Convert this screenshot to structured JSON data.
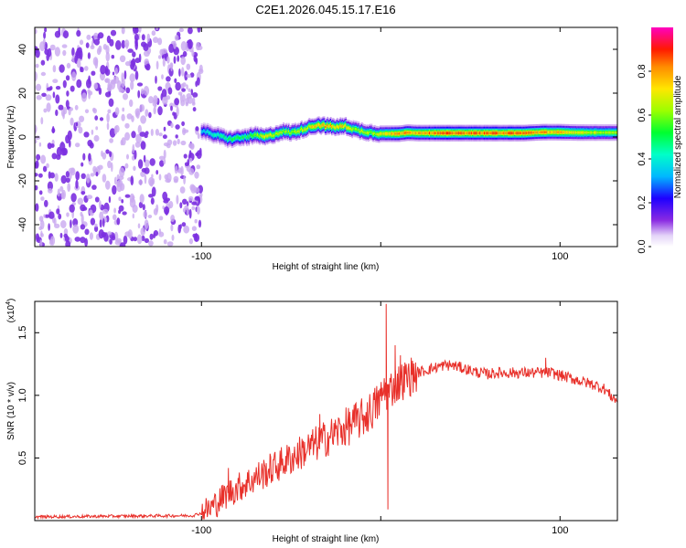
{
  "figure": {
    "title": "C2E1.2026.045.15.17.E16"
  },
  "colors": {
    "spectrogram_noise": "#7b2fe0",
    "spectrogram_noise_light": "#c9a9f0",
    "snr_line": "#e8302a"
  },
  "chart_data": [
    {
      "type": "heatmap",
      "name": "spectrogram",
      "xlabel": "Height of straight line (km)",
      "ylabel": "Frequency (Hz)",
      "xlim": [
        -193,
        132
      ],
      "ylim": [
        -50,
        50
      ],
      "xticks": [
        -100,
        0,
        100
      ],
      "xtick_labels": [
        "-100",
        "",
        "100"
      ],
      "yticks": [
        -40,
        -20,
        0,
        20,
        40
      ],
      "ytick_labels": [
        "-40",
        "-20",
        "0",
        "20",
        "40"
      ],
      "noise_region_x": [
        -193,
        -100
      ],
      "signal_track": {
        "x": [
          -100,
          -95,
          -90,
          -85,
          -80,
          -75,
          -70,
          -65,
          -60,
          -55,
          -50,
          -45,
          -40,
          -35,
          -30,
          -25,
          -20,
          -15,
          -10,
          -5,
          0,
          5,
          10,
          15,
          20,
          30,
          40,
          50,
          60,
          70,
          80,
          90,
          100,
          110,
          120,
          132
        ],
        "freq": [
          3,
          1.5,
          0.5,
          -1,
          -0.5,
          0,
          0.8,
          0,
          1,
          2.5,
          2,
          3,
          4.5,
          5.5,
          5,
          4.5,
          5,
          3.5,
          2.5,
          2,
          1.5,
          1.5,
          1.5,
          2,
          1.8,
          1.8,
          1.8,
          1.8,
          1.8,
          1.8,
          1.8,
          2.2,
          2.2,
          2.0,
          2.0,
          2.0
        ],
        "amplitude": [
          0.45,
          0.5,
          0.55,
          0.6,
          0.6,
          0.6,
          0.7,
          0.8,
          0.75,
          0.7,
          0.7,
          0.75,
          0.8,
          0.85,
          0.9,
          0.85,
          0.85,
          0.7,
          0.75,
          0.7,
          0.8,
          0.85,
          0.9,
          0.9,
          0.9,
          0.95,
          0.95,
          0.95,
          0.95,
          0.95,
          0.95,
          0.9,
          0.85,
          0.8,
          0.75,
          0.7
        ]
      },
      "colorbar": {
        "label": "Normalized spectral amplitude",
        "range": [
          0.0,
          1.0
        ],
        "ticks": [
          0.0,
          0.2,
          0.4,
          0.6,
          0.8
        ],
        "tick_labels": [
          "0.0",
          "0.2",
          "0.4",
          "0.6",
          "0.8"
        ]
      }
    },
    {
      "type": "line",
      "name": "snr",
      "xlabel": "Height of straight line (km)",
      "ylabel": "SNR (10 * v/v)",
      "multiplier_label": "(x10",
      "multiplier_exp": "4",
      "multiplier_close": ")",
      "xlim": [
        -193,
        132
      ],
      "ylim": [
        0,
        1.75
      ],
      "xticks": [
        -100,
        0,
        100
      ],
      "xtick_labels": [
        "-100",
        "",
        "100"
      ],
      "yticks": [
        0.5,
        1.0,
        1.5
      ],
      "ytick_labels": [
        "0.5",
        "1.0",
        "1.5"
      ],
      "series": [
        {
          "name": "SNR",
          "x": [
            -193,
            -150,
            -105,
            -100,
            -95,
            -90,
            -85,
            -80,
            -75,
            -70,
            -65,
            -60,
            -55,
            -50,
            -45,
            -40,
            -35,
            -30,
            -25,
            -20,
            -15,
            -10,
            -5,
            0,
            2,
            4,
            6,
            10,
            15,
            20,
            25,
            30,
            35,
            40,
            45,
            50,
            55,
            60,
            65,
            70,
            75,
            80,
            85,
            90,
            95,
            100,
            105,
            110,
            115,
            120,
            125,
            128,
            132
          ],
          "values": [
            0.03,
            0.035,
            0.04,
            0.06,
            0.1,
            0.16,
            0.22,
            0.26,
            0.3,
            0.34,
            0.38,
            0.42,
            0.46,
            0.5,
            0.54,
            0.58,
            0.62,
            0.66,
            0.7,
            0.74,
            0.78,
            0.82,
            0.88,
            0.97,
            1.05,
            1.02,
            1.06,
            1.1,
            1.14,
            1.18,
            1.2,
            1.22,
            1.24,
            1.24,
            1.22,
            1.2,
            1.18,
            1.17,
            1.18,
            1.18,
            1.18,
            1.18,
            1.18,
            1.18,
            1.18,
            1.16,
            1.14,
            1.12,
            1.1,
            1.08,
            1.05,
            1.0,
            0.95
          ]
        }
      ],
      "spikes": [
        {
          "x": -85,
          "value": 0.42
        },
        {
          "x": -34,
          "value": 0.85
        },
        {
          "x": 3,
          "value": 1.73
        },
        {
          "x": 4,
          "value": 0.09
        },
        {
          "x": 8,
          "value": 1.4
        },
        {
          "x": 11,
          "value": 1.32
        },
        {
          "x": 92,
          "value": 1.3
        }
      ]
    }
  ]
}
